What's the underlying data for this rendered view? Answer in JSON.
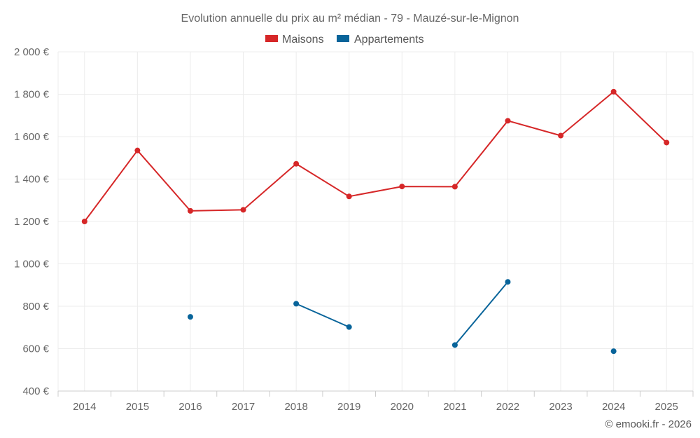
{
  "chart_data": {
    "type": "line",
    "title": "Evolution annuelle du prix au m² médian - 79 - Mauzé-sur-le-Mignon",
    "categories": [
      "2014",
      "2015",
      "2016",
      "2017",
      "2018",
      "2019",
      "2020",
      "2021",
      "2022",
      "2023",
      "2024",
      "2025"
    ],
    "ylim": [
      400,
      2000
    ],
    "yticks": [
      400,
      600,
      800,
      1000,
      1200,
      1400,
      1600,
      1800,
      2000
    ],
    "ytick_labels": [
      "400 €",
      "600 €",
      "800 €",
      "1 000 €",
      "1 200 €",
      "1 400 €",
      "1 600 €",
      "1 800 €",
      "2 000 €"
    ],
    "grid": true,
    "legend_position": "top-center",
    "series": [
      {
        "name": "Maisons",
        "color": "#d62728",
        "values": [
          1200,
          1535,
          1250,
          1255,
          1472,
          1318,
          1365,
          1364,
          1675,
          1605,
          1812,
          1572
        ]
      },
      {
        "name": "Appartements",
        "color": "#08649a",
        "values": [
          null,
          null,
          750,
          null,
          812,
          702,
          null,
          617,
          915,
          null,
          588,
          null
        ]
      }
    ]
  },
  "credit": "© emooki.fr - 2026"
}
